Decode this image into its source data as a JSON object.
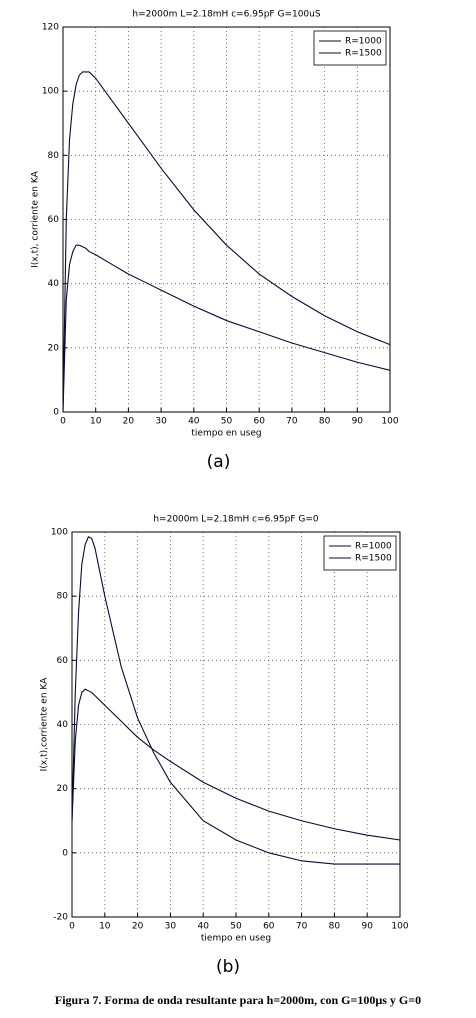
{
  "chart_data": [
    {
      "type": "line",
      "title": "h=2000m L=2.18mH c=6.95pF G=100uS",
      "x_label": "tiempo en useg",
      "y_label": "I(x,t), corriente en KA",
      "panel_label": "(a)",
      "x": [
        0,
        1,
        2,
        3,
        4,
        5,
        6,
        7,
        8,
        10,
        15,
        20,
        25,
        30,
        40,
        50,
        60,
        70,
        80,
        90,
        100
      ],
      "series": [
        {
          "name": "R=1000",
          "color": "#0a0a3a",
          "values": [
            0,
            60,
            85,
            96,
            102,
            105,
            106,
            106,
            106,
            104,
            97,
            90,
            83,
            76,
            63,
            52,
            43,
            36,
            30,
            25,
            21
          ]
        },
        {
          "name": "R=1500",
          "color": "#0a0a3a",
          "values": [
            0,
            35,
            46,
            50,
            52,
            52,
            51.5,
            51,
            50,
            49,
            46,
            43,
            40.5,
            38,
            33,
            28.5,
            25,
            21.5,
            18.5,
            15.5,
            13
          ]
        }
      ],
      "xlim": [
        0,
        100
      ],
      "xticks": [
        0,
        10,
        20,
        30,
        40,
        50,
        60,
        70,
        80,
        90,
        100
      ],
      "ylim": [
        0,
        120
      ],
      "yticks": [
        0,
        20,
        40,
        60,
        80,
        100,
        120
      ],
      "grid": true,
      "legend": "top-right"
    },
    {
      "type": "line",
      "title": "h=2000m L=2.18mH c=6.95pF G=0",
      "x_label": "tiempo en useg",
      "y_label": "I(x,t),corriente en KA",
      "panel_label": "(b)",
      "x": [
        0,
        1,
        2,
        3,
        4,
        5,
        6,
        7,
        8,
        10,
        15,
        20,
        25,
        30,
        40,
        50,
        60,
        70,
        80,
        90,
        100
      ],
      "series": [
        {
          "name": "R=1000",
          "color": "#0a0a3a",
          "values": [
            10,
            50,
            75,
            90,
            96,
            98.5,
            98,
            95,
            90,
            80,
            58,
            42,
            31,
            22,
            10,
            4,
            0,
            -2.5,
            -3.5,
            -3.5,
            -3.5
          ]
        },
        {
          "name": "R=1500",
          "color": "#0a0a3a",
          "values": [
            10,
            35,
            46,
            50,
            51,
            50.5,
            50,
            49,
            48,
            46,
            41,
            36,
            32,
            28.5,
            22,
            17,
            13,
            10,
            7.5,
            5.5,
            4
          ]
        }
      ],
      "xlim": [
        0,
        100
      ],
      "xticks": [
        0,
        10,
        20,
        30,
        40,
        50,
        60,
        70,
        80,
        90,
        100
      ],
      "ylim": [
        -20,
        100
      ],
      "yticks": [
        -20,
        0,
        20,
        40,
        60,
        80,
        100
      ],
      "grid": true,
      "legend": "top-right"
    }
  ],
  "caption": "Figura 7. Forma de onda resultante para h=2000m, con G=100µs y G=0"
}
